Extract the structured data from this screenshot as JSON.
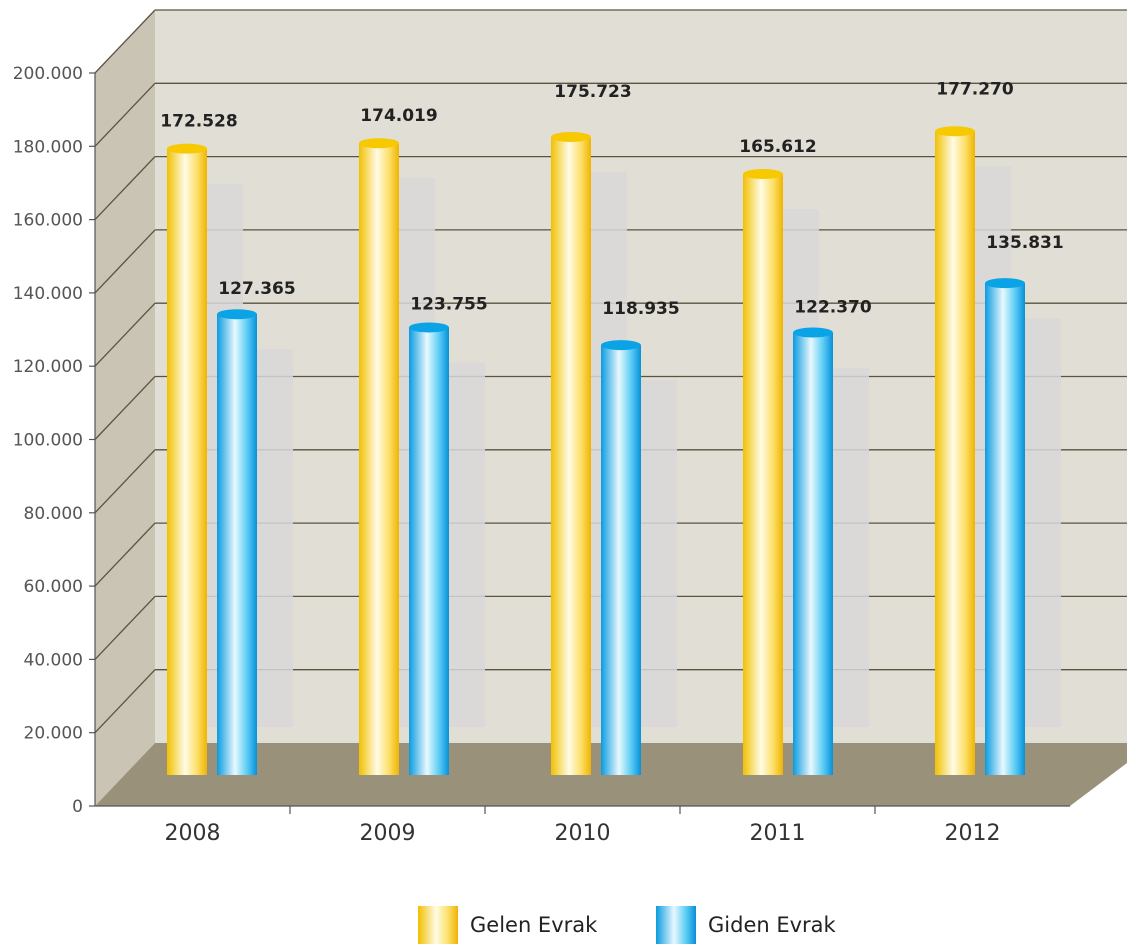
{
  "chart_data": {
    "type": "bar",
    "categories": [
      "2008",
      "2009",
      "2010",
      "2011",
      "2012"
    ],
    "series": [
      {
        "name": "Gelen Evrak",
        "values": [
          172528,
          174019,
          175723,
          165612,
          177270
        ],
        "labels": [
          "172.528",
          "174.019",
          "175.723",
          "165.612",
          "177.270"
        ]
      },
      {
        "name": "Giden Evrak",
        "values": [
          127365,
          123755,
          118935,
          122370,
          135831
        ],
        "labels": [
          "127.365",
          "123.755",
          "118.935",
          "122.370",
          "135.831"
        ]
      }
    ],
    "yticks": [
      "0",
      "20.000",
      "40.000",
      "60.000",
      "80.000",
      "100.000",
      "120.000",
      "140.000",
      "160.000",
      "180.000",
      "200.000"
    ],
    "ylim": [
      0,
      200000
    ],
    "grid": true,
    "legend": "bottom",
    "colors": {
      "gelen": "#f7c900",
      "giden": "#0aa4e6",
      "wall": "#e1ded6",
      "side_wall": "#c9c4b4",
      "floor": "#9a917a",
      "grid": "#5a5440"
    }
  }
}
